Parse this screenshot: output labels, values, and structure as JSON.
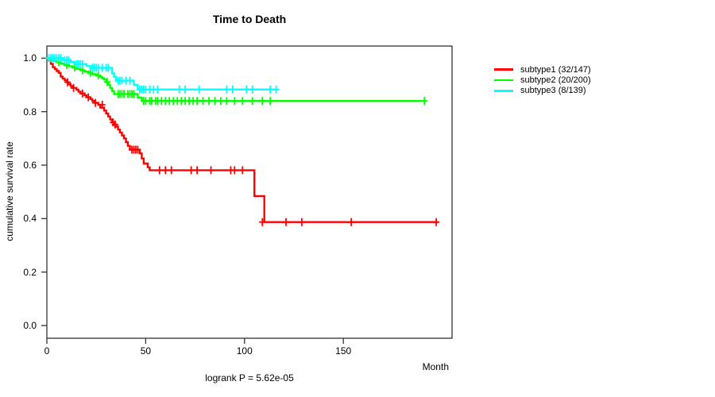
{
  "title": "Time to Death",
  "footer": "logrank P = 5.62e-05",
  "axes": {
    "y_label": "cumulative survival rate",
    "x_label": "Month",
    "x_ticks": [
      0,
      50,
      100,
      150
    ],
    "y_ticks": [
      "0.0",
      "0.2",
      "0.4",
      "0.6",
      "0.8",
      "1.0"
    ],
    "axis_color": "#333333"
  },
  "chart_data": {
    "type": "line",
    "subtype": "kaplan-meier-step-curves",
    "title": "Time to Death",
    "xlabel": "Month",
    "ylabel": "cumulative survival rate",
    "xlim": [
      0,
      205
    ],
    "ylim": [
      0,
      1
    ],
    "x_tick_values": [
      0,
      50,
      100,
      150
    ],
    "y_tick_values": [
      0.0,
      0.2,
      0.4,
      0.6,
      0.8,
      1.0
    ],
    "grid": false,
    "legend_position": "right-outside",
    "annotation": "logrank P = 5.62e-05",
    "series": [
      {
        "name": "subtype1",
        "label": "subtype1 (32/147)",
        "events": "32/147",
        "color": "#FF0000",
        "end_month": 198,
        "steps": [
          [
            0,
            1.0
          ],
          [
            1,
            0.993
          ],
          [
            2,
            0.979
          ],
          [
            3,
            0.966
          ],
          [
            4,
            0.959
          ],
          [
            5,
            0.952
          ],
          [
            6,
            0.945
          ],
          [
            7,
            0.931
          ],
          [
            8,
            0.924
          ],
          [
            9,
            0.917
          ],
          [
            10,
            0.91
          ],
          [
            11,
            0.903
          ],
          [
            12,
            0.896
          ],
          [
            13,
            0.889
          ],
          [
            15,
            0.882
          ],
          [
            16,
            0.875
          ],
          [
            17,
            0.868
          ],
          [
            19,
            0.861
          ],
          [
            20,
            0.854
          ],
          [
            22,
            0.847
          ],
          [
            23,
            0.84
          ],
          [
            24,
            0.833
          ],
          [
            26,
            0.826
          ],
          [
            27,
            0.815
          ],
          [
            29,
            0.804
          ],
          [
            30,
            0.793
          ],
          [
            31,
            0.782
          ],
          [
            32,
            0.771
          ],
          [
            33,
            0.76
          ],
          [
            34,
            0.752
          ],
          [
            35,
            0.744
          ],
          [
            36,
            0.733
          ],
          [
            37,
            0.722
          ],
          [
            38,
            0.711
          ],
          [
            39,
            0.7
          ],
          [
            40,
            0.686
          ],
          [
            41,
            0.672
          ],
          [
            42,
            0.658
          ],
          [
            47,
            0.644
          ],
          [
            48,
            0.625
          ],
          [
            49,
            0.606
          ],
          [
            51,
            0.592
          ],
          [
            52,
            0.581
          ],
          [
            105,
            0.484
          ],
          [
            110,
            0.387
          ]
        ],
        "censors": [
          [
            10.5,
            0.91
          ],
          [
            13.5,
            0.889
          ],
          [
            18,
            0.868
          ],
          [
            21,
            0.854
          ],
          [
            24.5,
            0.833
          ],
          [
            28,
            0.826
          ],
          [
            33.5,
            0.76
          ],
          [
            34.5,
            0.752
          ],
          [
            43,
            0.658
          ],
          [
            44,
            0.658
          ],
          [
            45,
            0.658
          ],
          [
            46,
            0.658
          ],
          [
            57,
            0.581
          ],
          [
            60,
            0.581
          ],
          [
            63,
            0.581
          ],
          [
            73,
            0.581
          ],
          [
            76,
            0.581
          ],
          [
            83,
            0.581
          ],
          [
            93,
            0.581
          ],
          [
            95,
            0.581
          ],
          [
            99,
            0.581
          ],
          [
            109,
            0.387
          ],
          [
            121,
            0.387
          ],
          [
            129,
            0.387
          ],
          [
            154,
            0.387
          ],
          [
            197,
            0.387
          ]
        ]
      },
      {
        "name": "subtype2",
        "label": "subtype2 (20/200)",
        "events": "20/200",
        "color": "#00FF00",
        "end_month": 191,
        "steps": [
          [
            0,
            1.0
          ],
          [
            1,
            0.995
          ],
          [
            3,
            0.99
          ],
          [
            5,
            0.985
          ],
          [
            7,
            0.98
          ],
          [
            9,
            0.975
          ],
          [
            11,
            0.97
          ],
          [
            13,
            0.965
          ],
          [
            15,
            0.96
          ],
          [
            17,
            0.955
          ],
          [
            19,
            0.95
          ],
          [
            21,
            0.945
          ],
          [
            23,
            0.94
          ],
          [
            25,
            0.935
          ],
          [
            27,
            0.93
          ],
          [
            28,
            0.925
          ],
          [
            29,
            0.92
          ],
          [
            30,
            0.911
          ],
          [
            31,
            0.9
          ],
          [
            32,
            0.889
          ],
          [
            33,
            0.877
          ],
          [
            34,
            0.866
          ],
          [
            46,
            0.852
          ],
          [
            48,
            0.84
          ]
        ],
        "censors": [
          [
            6,
            0.985
          ],
          [
            10,
            0.975
          ],
          [
            14,
            0.965
          ],
          [
            18,
            0.955
          ],
          [
            22,
            0.945
          ],
          [
            26,
            0.935
          ],
          [
            30.5,
            0.911
          ],
          [
            36,
            0.866
          ],
          [
            37,
            0.866
          ],
          [
            38,
            0.866
          ],
          [
            39,
            0.866
          ],
          [
            41,
            0.866
          ],
          [
            42,
            0.866
          ],
          [
            43,
            0.866
          ],
          [
            44,
            0.866
          ],
          [
            49,
            0.84
          ],
          [
            50,
            0.84
          ],
          [
            52,
            0.84
          ],
          [
            53,
            0.84
          ],
          [
            55,
            0.84
          ],
          [
            56,
            0.84
          ],
          [
            58,
            0.84
          ],
          [
            60,
            0.84
          ],
          [
            62,
            0.84
          ],
          [
            64,
            0.84
          ],
          [
            66,
            0.84
          ],
          [
            68,
            0.84
          ],
          [
            70,
            0.84
          ],
          [
            72,
            0.84
          ],
          [
            74,
            0.84
          ],
          [
            76,
            0.84
          ],
          [
            79,
            0.84
          ],
          [
            82,
            0.84
          ],
          [
            85,
            0.84
          ],
          [
            88,
            0.84
          ],
          [
            91,
            0.84
          ],
          [
            95,
            0.84
          ],
          [
            99,
            0.84
          ],
          [
            104,
            0.84
          ],
          [
            109,
            0.84
          ],
          [
            113,
            0.84
          ],
          [
            191,
            0.84
          ]
        ]
      },
      {
        "name": "subtype3",
        "label": "subtype3 (8/139)",
        "events": "8/139",
        "color": "#00FFFF",
        "end_month": 117,
        "steps": [
          [
            0,
            1.0
          ],
          [
            8,
            0.993
          ],
          [
            12,
            0.986
          ],
          [
            14,
            0.978
          ],
          [
            20,
            0.971
          ],
          [
            22,
            0.964
          ],
          [
            33,
            0.944
          ],
          [
            34,
            0.93
          ],
          [
            35,
            0.916
          ],
          [
            44,
            0.9
          ],
          [
            46,
            0.883
          ]
        ],
        "censors": [
          [
            1,
            1.0
          ],
          [
            2,
            1.0
          ],
          [
            3,
            1.0
          ],
          [
            4,
            1.0
          ],
          [
            5,
            1.0
          ],
          [
            6,
            1.0
          ],
          [
            7,
            1.0
          ],
          [
            9,
            0.993
          ],
          [
            10,
            0.993
          ],
          [
            11,
            0.993
          ],
          [
            15,
            0.978
          ],
          [
            16,
            0.978
          ],
          [
            17,
            0.978
          ],
          [
            18,
            0.978
          ],
          [
            23,
            0.964
          ],
          [
            24,
            0.964
          ],
          [
            25,
            0.964
          ],
          [
            26,
            0.964
          ],
          [
            28,
            0.964
          ],
          [
            30,
            0.964
          ],
          [
            31,
            0.964
          ],
          [
            36,
            0.916
          ],
          [
            37,
            0.916
          ],
          [
            38,
            0.916
          ],
          [
            40,
            0.916
          ],
          [
            42,
            0.916
          ],
          [
            47,
            0.883
          ],
          [
            48,
            0.883
          ],
          [
            49,
            0.883
          ],
          [
            50,
            0.883
          ],
          [
            52,
            0.883
          ],
          [
            54,
            0.883
          ],
          [
            56,
            0.883
          ],
          [
            67,
            0.883
          ],
          [
            70,
            0.883
          ],
          [
            77,
            0.883
          ],
          [
            91,
            0.883
          ],
          [
            94,
            0.883
          ],
          [
            101,
            0.883
          ],
          [
            104,
            0.883
          ],
          [
            113,
            0.883
          ],
          [
            116,
            0.883
          ]
        ]
      }
    ]
  }
}
